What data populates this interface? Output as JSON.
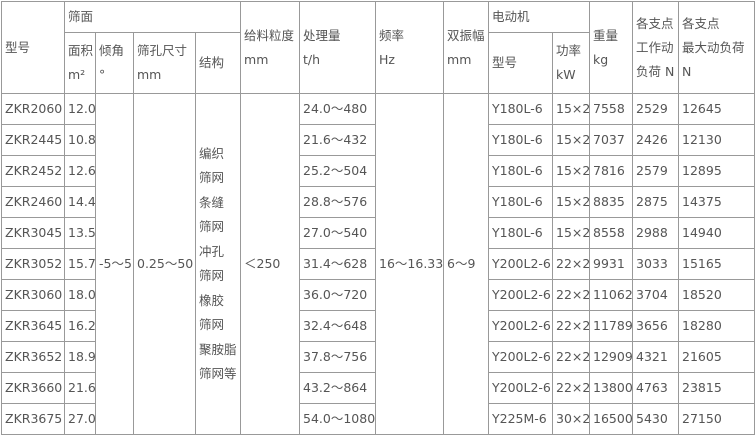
{
  "headers": {
    "model": "型号",
    "screen": "筛面",
    "area": [
      "面积",
      "m²"
    ],
    "angle": [
      "倾角",
      "°"
    ],
    "aperture": [
      "筛孔尺寸",
      "mm"
    ],
    "structure": "结构",
    "feed_size": [
      "给料粒度",
      "mm"
    ],
    "capacity": [
      "处理量",
      "t/h"
    ],
    "frequency": [
      "频率",
      "Hz"
    ],
    "amplitude": [
      "双振幅",
      "mm"
    ],
    "motor": "电动机",
    "motor_model": "型号",
    "power": [
      "功率",
      "kW"
    ],
    "weight": [
      "重量",
      "kg"
    ],
    "work_load": [
      "各支点",
      "工作动",
      "负荷 N"
    ],
    "max_load": [
      "各支点",
      "最大动负荷",
      "N"
    ]
  },
  "shared": {
    "angle": "-5～5",
    "aperture": "0.25～50",
    "structure_lines": [
      "编织",
      "筛网",
      "条缝",
      "筛网",
      "冲孔",
      "筛网",
      "橡胶",
      "筛网",
      "聚胺脂",
      "筛网等"
    ],
    "feed_size": "＜250",
    "frequency": "16～16.33",
    "amplitude": "6～9"
  },
  "rows": [
    {
      "model": "ZKR2060",
      "area": "12.0",
      "capacity": "24.0～480",
      "motor": "Y180L-6",
      "power": "15×2",
      "weight": "7558",
      "work": "2529",
      "max": "12645"
    },
    {
      "model": "ZKR2445",
      "area": "10.8",
      "capacity": "21.6～432",
      "motor": "Y180L-6",
      "power": "15×2",
      "weight": "7037",
      "work": "2426",
      "max": "12130"
    },
    {
      "model": "ZKR2452",
      "area": "12.6",
      "capacity": "25.2～504",
      "motor": "Y180L-6",
      "power": "15×2",
      "weight": "7816",
      "work": "2579",
      "max": "12895"
    },
    {
      "model": "ZKR2460",
      "area": "14.4",
      "capacity": "28.8～576",
      "motor": "Y180L-6",
      "power": "15×2",
      "weight": "8835",
      "work": "2875",
      "max": "14375"
    },
    {
      "model": "ZKR3045",
      "area": "13.5",
      "capacity": "27.0～540",
      "motor": "Y180L-6",
      "power": "15×2",
      "weight": "8558",
      "work": "2988",
      "max": "14940"
    },
    {
      "model": "ZKR3052",
      "area": "15.7",
      "capacity": "31.4～628",
      "motor": "Y200L2-6",
      "power": "22×2",
      "weight": "9931",
      "work": "3033",
      "max": "15165"
    },
    {
      "model": "ZKR3060",
      "area": "18.0",
      "capacity": "36.0～720",
      "motor": "Y200L2-6",
      "power": "22×2",
      "weight": "11062",
      "work": "3704",
      "max": "18520"
    },
    {
      "model": "ZKR3645",
      "area": "16.2",
      "capacity": "32.4～648",
      "motor": "Y200L2-6",
      "power": "22×2",
      "weight": "11789",
      "work": "3656",
      "max": "18280"
    },
    {
      "model": "ZKR3652",
      "area": "18.9",
      "capacity": "37.8～756",
      "motor": "Y200L2-6",
      "power": "22×2",
      "weight": "12909",
      "work": "4321",
      "max": "21605"
    },
    {
      "model": "ZKR3660",
      "area": "21.6",
      "capacity": "43.2～864",
      "motor": "Y200L2-6",
      "power": "22×2",
      "weight": "13800",
      "work": "4763",
      "max": "23815"
    },
    {
      "model": "ZKR3675",
      "area": "27.0",
      "capacity": "54.0～1080",
      "motor": "Y225M-6",
      "power": "30×2",
      "weight": "16500",
      "work": "5430",
      "max": "27150"
    }
  ]
}
